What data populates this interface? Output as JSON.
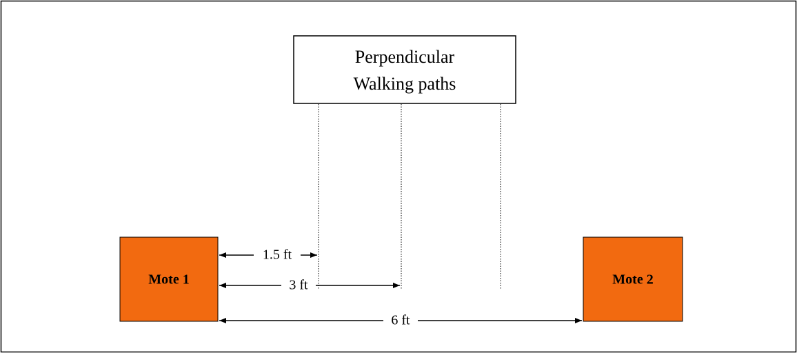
{
  "title_box": {
    "lines": [
      "Perpendicular",
      "Walking paths"
    ]
  },
  "nodes": [
    {
      "label": "Mote 1"
    },
    {
      "label": "Mote 2"
    }
  ],
  "dimensions": [
    {
      "label": "1.5 ft"
    },
    {
      "label": "3 ft"
    },
    {
      "label": "6 ft"
    }
  ]
}
